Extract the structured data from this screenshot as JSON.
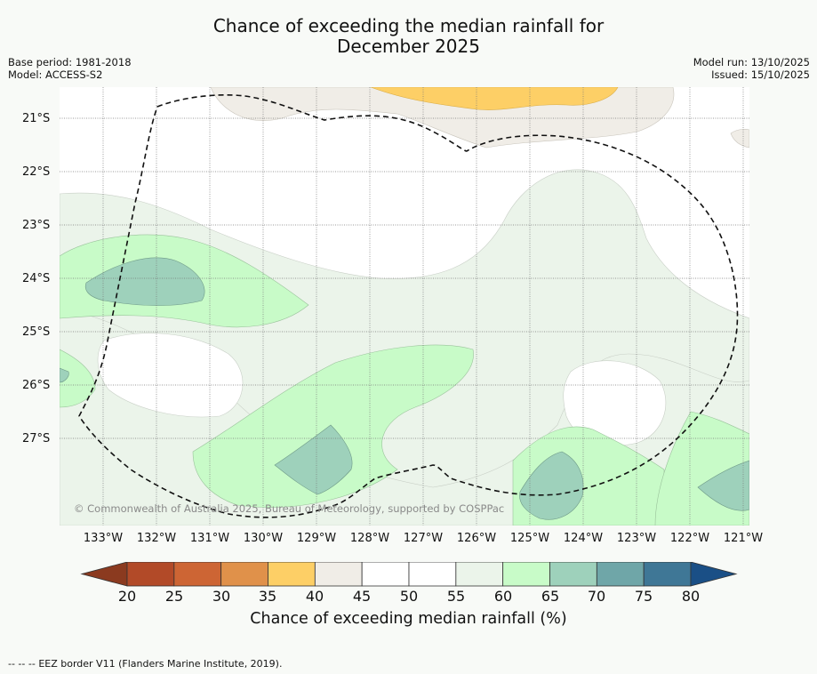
{
  "header": {
    "title_line1": "Chance of exceeding the median rainfall for",
    "title_line2": "December 2025",
    "base_period": "Base period: 1981-2018",
    "model": "Model: ACCESS-S2",
    "model_run": "Model run: 13/10/2025",
    "issued": "Issued: 15/10/2025"
  },
  "map": {
    "lat_labels": [
      "21°S",
      "22°S",
      "23°S",
      "24°S",
      "25°S",
      "26°S",
      "27°S"
    ],
    "lon_labels": [
      "133°W",
      "132°W",
      "131°W",
      "130°W",
      "129°W",
      "128°W",
      "127°W",
      "126°W",
      "125°W",
      "124°W",
      "123°W",
      "122°W",
      "121°W"
    ],
    "copyright": "© Commonwealth of Australia 2025, Bureau of Meteorology, supported by COSPPac",
    "boundary_style": "dashed"
  },
  "colorbar": {
    "ticks": [
      "20",
      "25",
      "30",
      "35",
      "40",
      "45",
      "50",
      "55",
      "60",
      "65",
      "70",
      "75",
      "80"
    ],
    "under_color": "#8b3a1f",
    "over_color": "#1a4f86",
    "colors": [
      "#b24a28",
      "#cd6534",
      "#e0914a",
      "#fdcf66",
      "#f0ede7",
      "#ffffff",
      "#ffffff",
      "#ebf4ea",
      "#c8fbc8",
      "#9ed1bb",
      "#6fa6a8",
      "#3f7796"
    ],
    "title": "Chance of exceeding median rainfall (%)"
  },
  "footer": {
    "legend_symbol": "--  --  --",
    "legend_text": "EEZ border V11 (Flanders Marine Institute, 2019)."
  }
}
